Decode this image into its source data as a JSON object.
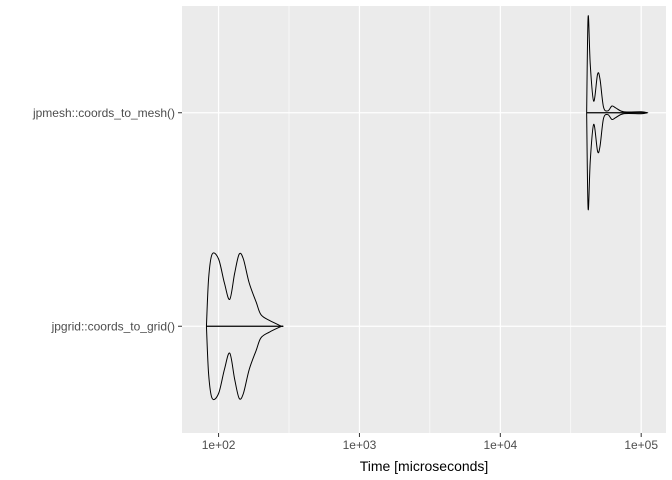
{
  "chart_data": {
    "type": "violin",
    "xlabel": "Time [microseconds]",
    "ylabel": "",
    "x_scale": "log10",
    "xlim": [
      55,
      150000
    ],
    "x_ticks": [
      {
        "value": 100,
        "label": "1e+02"
      },
      {
        "value": 1000,
        "label": "1e+03"
      },
      {
        "value": 10000,
        "label": "1e+04"
      },
      {
        "value": 100000,
        "label": "1e+05"
      }
    ],
    "categories": [
      "jpgrid::coords_to_grid()",
      "jpmesh::coords_to_mesh()"
    ],
    "grid": true,
    "background_color": "#ebebeb",
    "grid_color": "#ffffff",
    "line_color": "#000000",
    "series": [
      {
        "category": "jpgrid::coords_to_grid()",
        "profile": [
          [
            82,
            0.0
          ],
          [
            85,
            0.5
          ],
          [
            90,
            0.75
          ],
          [
            100,
            0.7
          ],
          [
            110,
            0.45
          ],
          [
            120,
            0.28
          ],
          [
            130,
            0.55
          ],
          [
            140,
            0.75
          ],
          [
            150,
            0.7
          ],
          [
            165,
            0.45
          ],
          [
            185,
            0.25
          ],
          [
            200,
            0.12
          ],
          [
            230,
            0.06
          ],
          [
            280,
            0.0
          ]
        ]
      },
      {
        "category": "jpmesh::coords_to_mesh()",
        "profile": [
          [
            41000,
            0.0
          ],
          [
            42000,
            1.0
          ],
          [
            43500,
            0.5
          ],
          [
            46000,
            0.12
          ],
          [
            49000,
            0.4
          ],
          [
            51000,
            0.35
          ],
          [
            54000,
            0.06
          ],
          [
            58000,
            0.02
          ],
          [
            62000,
            0.07
          ],
          [
            66000,
            0.05
          ],
          [
            75000,
            0.01
          ],
          [
            100000,
            0.01
          ],
          [
            110000,
            0.0
          ]
        ]
      }
    ]
  }
}
